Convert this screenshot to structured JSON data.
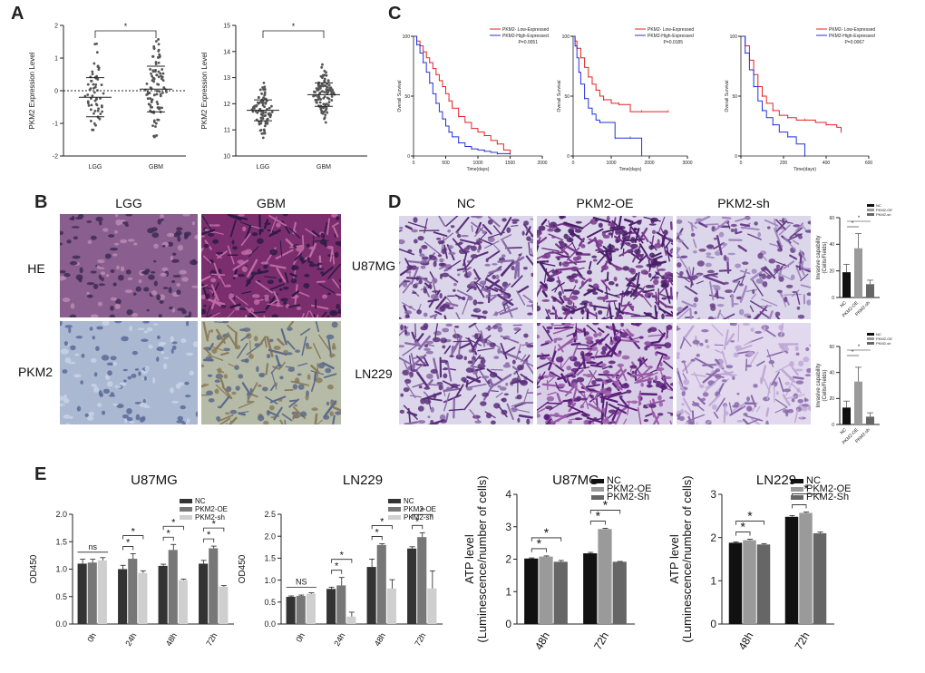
{
  "panels": {
    "A": "A",
    "B": "B",
    "C": "C",
    "D": "D",
    "E": "E"
  },
  "colors": {
    "dot": "#888888",
    "red": "#e52222",
    "blue": "#2233dd",
    "he_lgg": "#8a5e8e",
    "he_gbm": "#7a2e6e",
    "pkm_lgg": "#aab8d2",
    "pkm_gbm": "#b5bba6",
    "transwell": "#dcd6ea",
    "dark": "#333333",
    "mid": "#888888",
    "light": "#cfcfcf"
  },
  "chart_data": [
    {
      "id": "A1",
      "type": "scatter",
      "ylabel": "PKM2 Expression Level",
      "xlabel": "",
      "categories": [
        "LGG",
        "GBM"
      ],
      "ylim": [
        -2,
        2
      ],
      "yticks": [
        "-2",
        "-1",
        "0",
        "1",
        "2"
      ],
      "series": [
        {
          "name": "LGG",
          "mean": -0.2,
          "sd": 0.6,
          "n": 60,
          "spread": [
            -1.2,
            1.5
          ]
        },
        {
          "name": "GBM",
          "mean": 0.05,
          "sd": 0.7,
          "n": 95,
          "spread": [
            -1.6,
            1.6
          ]
        }
      ],
      "significance": "*",
      "dashed_zero_line": true
    },
    {
      "id": "A2",
      "type": "scatter",
      "ylabel": "PKM2 Expression Level",
      "xlabel": "",
      "categories": [
        "LGG",
        "GBM"
      ],
      "ylim": [
        10,
        15
      ],
      "yticks": [
        "10",
        "11",
        "12",
        "13",
        "14",
        "15"
      ],
      "series": [
        {
          "name": "LGG",
          "mean": 11.75,
          "sd": 0.4,
          "n": 90,
          "spread": [
            10.7,
            12.8
          ]
        },
        {
          "name": "GBM",
          "mean": 12.35,
          "sd": 0.45,
          "n": 120,
          "spread": [
            11.0,
            13.5
          ]
        }
      ],
      "significance": "*"
    },
    {
      "id": "C1",
      "type": "line",
      "ylabel": "Overall Survival",
      "xlabel": "Time(days)",
      "xlim": [
        0,
        2000
      ],
      "xticks": [
        "0",
        "500",
        "1000",
        "1500",
        "2000"
      ],
      "ylim": [
        0,
        100
      ],
      "yticks": [
        "0",
        "50",
        "100"
      ],
      "legend": [
        "PKM2- Low-Expressed",
        "PKM2-High-Expressed"
      ],
      "pvalue": "P=0.0051",
      "series": [
        {
          "name": "PKM2- Low-Expressed",
          "x": [
            0,
            50,
            100,
            150,
            200,
            250,
            300,
            350,
            400,
            450,
            500,
            550,
            600,
            700,
            800,
            900,
            1000,
            1100,
            1200,
            1300,
            1400,
            1500
          ],
          "y": [
            100,
            96,
            92,
            87,
            82,
            78,
            73,
            68,
            63,
            58,
            52,
            46,
            40,
            33,
            28,
            23,
            20,
            17,
            13,
            10,
            5,
            2
          ]
        },
        {
          "name": "PKM2-High-Expressed",
          "x": [
            0,
            50,
            100,
            150,
            200,
            250,
            300,
            350,
            400,
            450,
            500,
            550,
            600,
            700,
            800,
            900,
            1000,
            1100,
            1200,
            1300,
            1500
          ],
          "y": [
            100,
            93,
            86,
            78,
            70,
            61,
            52,
            44,
            37,
            31,
            25,
            20,
            16,
            11,
            8,
            6,
            5,
            4,
            3,
            2,
            1
          ]
        }
      ]
    },
    {
      "id": "C2",
      "type": "line",
      "ylabel": "Overall Survival",
      "xlabel": "Time(days)",
      "xlim": [
        0,
        3000
      ],
      "xticks": [
        "0",
        "1000",
        "2000",
        "3000"
      ],
      "ylim": [
        0,
        100
      ],
      "yticks": [
        "0",
        "50",
        "100"
      ],
      "legend": [
        "PKM2- Low-Expressed",
        "PKM2-High-Expressed"
      ],
      "pvalue": "P=0.0185",
      "series": [
        {
          "name": "PKM2- Low-Expressed",
          "x": [
            0,
            50,
            100,
            200,
            300,
            400,
            500,
            600,
            700,
            800,
            1000,
            1200,
            1500,
            1800,
            2000,
            2500
          ],
          "y": [
            100,
            96,
            90,
            82,
            74,
            66,
            60,
            55,
            50,
            47,
            44,
            43,
            37,
            37,
            37,
            37
          ]
        },
        {
          "name": "PKM2-High-Expressed",
          "x": [
            0,
            50,
            100,
            150,
            200,
            300,
            400,
            500,
            600,
            700,
            900,
            1100,
            1200,
            1500,
            1800
          ],
          "y": [
            100,
            92,
            82,
            70,
            60,
            48,
            40,
            35,
            30,
            28,
            28,
            15,
            15,
            15,
            0
          ]
        }
      ]
    },
    {
      "id": "C3",
      "type": "line",
      "ylabel": "Overall Survival",
      "xlabel": "Time(days)",
      "xlim": [
        0,
        600
      ],
      "xticks": [
        "0",
        "200",
        "400",
        "600"
      ],
      "ylim": [
        0,
        100
      ],
      "yticks": [
        "0",
        "50",
        "100"
      ],
      "legend": [
        "PKM2- Low-Expressed",
        "PKM2-High-Expressed"
      ],
      "pvalue": "P=0.0067",
      "series": [
        {
          "name": "PKM2- Low-Expressed",
          "x": [
            0,
            20,
            40,
            60,
            80,
            100,
            120,
            150,
            180,
            220,
            260,
            300,
            350,
            400,
            450,
            470
          ],
          "y": [
            100,
            92,
            80,
            68,
            58,
            50,
            44,
            38,
            34,
            32,
            30,
            30,
            28,
            26,
            24,
            20
          ]
        },
        {
          "name": "PKM2-High-Expressed",
          "x": [
            0,
            20,
            40,
            60,
            80,
            100,
            120,
            150,
            180,
            220,
            260,
            300
          ],
          "y": [
            100,
            86,
            72,
            58,
            46,
            38,
            32,
            26,
            20,
            16,
            10,
            0
          ]
        }
      ]
    },
    {
      "id": "D1",
      "type": "bar",
      "ylabel": "Invasive capability",
      "ylabel2": "(Cells/Fields)",
      "categories": [
        "NC",
        "PKM2-OE",
        "PKM2-sh"
      ],
      "values": [
        19,
        37,
        10
      ],
      "errors": [
        6,
        11,
        3
      ],
      "ylim": [
        0,
        60
      ],
      "yticks": [
        "0",
        "20",
        "40",
        "60"
      ],
      "legend": [
        "NC",
        "PKM2-OE",
        "PKM2-sh"
      ],
      "significance": [
        "*",
        "*"
      ]
    },
    {
      "id": "D2",
      "type": "bar",
      "ylabel": "Invasive capability",
      "ylabel2": "(Cells/Fields)",
      "categories": [
        "NC",
        "PKM2-OE",
        "PKM2-sh"
      ],
      "values": [
        13,
        33,
        6
      ],
      "errors": [
        5,
        11,
        3
      ],
      "ylim": [
        0,
        60
      ],
      "yticks": [
        "0",
        "20",
        "40",
        "60"
      ],
      "legend": [
        "NC",
        "PKM2-OE",
        "PKM2-sh"
      ],
      "significance": [
        "*",
        "*"
      ]
    },
    {
      "id": "E1",
      "type": "bar",
      "title": "U87MG",
      "ylabel": "OD450",
      "xlabel": "",
      "categories": [
        "0h",
        "24h",
        "48h",
        "72h"
      ],
      "series": [
        {
          "name": "NC",
          "values": [
            1.1,
            1.0,
            1.06,
            1.1
          ],
          "errors": [
            0.08,
            0.07,
            0.03,
            0.06
          ]
        },
        {
          "name": "PKM2-OE",
          "values": [
            1.12,
            1.19,
            1.35,
            1.38
          ],
          "errors": [
            0.06,
            0.09,
            0.1,
            0.04
          ]
        },
        {
          "name": "PKM2-sh",
          "values": [
            1.16,
            0.93,
            0.8,
            0.68
          ],
          "errors": [
            0.05,
            0.04,
            0.02,
            0.02
          ]
        }
      ],
      "ylim": [
        0,
        2.0
      ],
      "yticks": [
        "0.0",
        "0.5",
        "1.0",
        "1.5",
        "2.0"
      ],
      "annotations": [
        "ns",
        "*",
        "*",
        "*",
        "*",
        "*",
        "*"
      ]
    },
    {
      "id": "E2",
      "type": "bar",
      "title": "LN229",
      "ylabel": "OD450",
      "xlabel": "",
      "categories": [
        "0h",
        "24h",
        "48h",
        "72h"
      ],
      "series": [
        {
          "name": "NC",
          "values": [
            0.62,
            0.8,
            1.3,
            1.72
          ],
          "errors": [
            0.02,
            0.04,
            0.18,
            0.04
          ]
        },
        {
          "name": "PKM2-OE",
          "values": [
            0.64,
            0.88,
            1.8,
            1.98
          ],
          "errors": [
            0.02,
            0.18,
            0.03,
            0.1
          ]
        },
        {
          "name": "PKM2-sh",
          "values": [
            0.69,
            0.17,
            0.81,
            0.81
          ],
          "errors": [
            0.02,
            0.1,
            0.2,
            0.4
          ]
        }
      ],
      "ylim": [
        0,
        2.5
      ],
      "yticks": [
        "0.0",
        "0.5",
        "1.0",
        "1.5",
        "2.0",
        "2.5"
      ],
      "annotations": [
        "NS",
        "*",
        "*",
        "*",
        "*",
        "*",
        "*"
      ]
    },
    {
      "id": "E3",
      "type": "bar",
      "title": "U87MG",
      "ylabel": "ATP level",
      "ylabel2": "(Luminescence/number of cells)",
      "categories": [
        "48h",
        "72h"
      ],
      "series": [
        {
          "name": "NC",
          "values": [
            2.02,
            2.18
          ],
          "errors": [
            0.02,
            0.03
          ]
        },
        {
          "name": "PKM2-OE",
          "values": [
            2.08,
            2.93
          ],
          "errors": [
            0.02,
            0.02
          ]
        },
        {
          "name": "PKM2-Sh",
          "values": [
            1.92,
            1.92
          ],
          "errors": [
            0.04,
            0.01
          ]
        }
      ],
      "ylim": [
        0,
        4
      ],
      "yticks": [
        "0",
        "1",
        "2",
        "3",
        "4"
      ],
      "annotations": [
        "*",
        "*",
        "*",
        "*"
      ]
    },
    {
      "id": "E4",
      "type": "bar",
      "title": "LN229",
      "ylabel": "ATP level",
      "ylabel2": "(Luminescence/number of cells)",
      "categories": [
        "48h",
        "72h"
      ],
      "series": [
        {
          "name": "NC",
          "values": [
            1.88,
            2.48
          ],
          "errors": [
            0.02,
            0.03
          ]
        },
        {
          "name": "PKM2-OE",
          "values": [
            1.94,
            2.57
          ],
          "errors": [
            0.02,
            0.02
          ]
        },
        {
          "name": "PKM2-Sh",
          "values": [
            1.84,
            2.1
          ],
          "errors": [
            0.02,
            0.03
          ]
        }
      ],
      "ylim": [
        0,
        3
      ],
      "yticks": [
        "0",
        "1",
        "2",
        "3"
      ],
      "annotations": [
        "*",
        "*",
        "*",
        "*"
      ]
    }
  ],
  "figB": {
    "col1": "LGG",
    "col2": "GBM",
    "row1": "HE",
    "row2": "PKM2"
  },
  "figD": {
    "col1": "NC",
    "col2": "PKM2-OE",
    "col3": "PKM2-sh",
    "row1": "U87MG",
    "row2": "LN229"
  }
}
